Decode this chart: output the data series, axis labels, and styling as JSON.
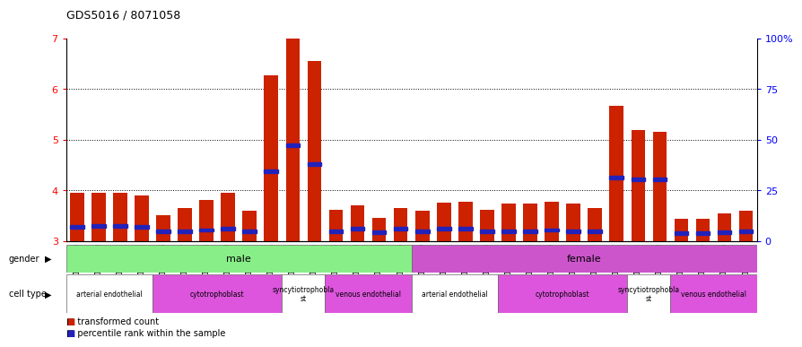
{
  "title": "GDS5016 / 8071058",
  "samples": [
    "GSM1083999",
    "GSM1084000",
    "GSM1084001",
    "GSM1084002",
    "GSM1083976",
    "GSM1083977",
    "GSM1083978",
    "GSM1083979",
    "GSM1083981",
    "GSM1083984",
    "GSM1083985",
    "GSM1083986",
    "GSM1083998",
    "GSM1084003",
    "GSM1084004",
    "GSM1084005",
    "GSM1083990",
    "GSM1083991",
    "GSM1083992",
    "GSM1083993",
    "GSM1083974",
    "GSM1083975",
    "GSM1083980",
    "GSM1083982",
    "GSM1083983",
    "GSM1083987",
    "GSM1083988",
    "GSM1083989",
    "GSM1083994",
    "GSM1083995",
    "GSM1083996",
    "GSM1083997"
  ],
  "bar_heights": [
    3.95,
    3.95,
    3.95,
    3.9,
    3.52,
    3.65,
    3.82,
    3.95,
    3.6,
    6.28,
    7.0,
    6.55,
    3.62,
    3.7,
    3.46,
    3.65,
    3.6,
    3.76,
    3.78,
    3.62,
    3.75,
    3.75,
    3.78,
    3.74,
    3.65,
    5.68,
    5.2,
    5.15,
    3.45,
    3.45,
    3.55,
    3.6
  ],
  "blue_heights": [
    3.28,
    3.3,
    3.3,
    3.28,
    3.2,
    3.2,
    3.22,
    3.25,
    3.2,
    4.38,
    4.9,
    4.52,
    3.2,
    3.25,
    3.18,
    3.25,
    3.2,
    3.25,
    3.25,
    3.2,
    3.2,
    3.2,
    3.22,
    3.2,
    3.2,
    4.25,
    4.22,
    4.22,
    3.15,
    3.15,
    3.18,
    3.2
  ],
  "baseline": 3.0,
  "ylim_left": [
    3.0,
    7.0
  ],
  "ylim_right": [
    0,
    100
  ],
  "yticks_left": [
    3,
    4,
    5,
    6,
    7
  ],
  "yticks_right": [
    0,
    25,
    50,
    75,
    100
  ],
  "ytick_right_labels": [
    "0",
    "25",
    "50",
    "75",
    "100%"
  ],
  "grid_lines": [
    4,
    5,
    6
  ],
  "bar_color": "#cc2200",
  "blue_color": "#2222bb",
  "gender_labels": [
    {
      "label": "male",
      "start": 0,
      "end": 16,
      "color": "#88ee88"
    },
    {
      "label": "female",
      "start": 16,
      "end": 32,
      "color": "#cc55cc"
    }
  ],
  "cell_type_groups": [
    {
      "label": "arterial endothelial",
      "start": 0,
      "end": 4,
      "color": "#ffffff"
    },
    {
      "label": "cytotrophoblast",
      "start": 4,
      "end": 10,
      "color": "#dd55dd"
    },
    {
      "label": "syncytiotrophobla\nst",
      "start": 10,
      "end": 12,
      "color": "#ffffff"
    },
    {
      "label": "venous endothelial",
      "start": 12,
      "end": 16,
      "color": "#dd55dd"
    },
    {
      "label": "arterial endothelial",
      "start": 16,
      "end": 20,
      "color": "#ffffff"
    },
    {
      "label": "cytotrophoblast",
      "start": 20,
      "end": 26,
      "color": "#dd55dd"
    },
    {
      "label": "syncytiotrophobla\nst",
      "start": 26,
      "end": 28,
      "color": "#ffffff"
    },
    {
      "label": "venous endothelial",
      "start": 28,
      "end": 32,
      "color": "#dd55dd"
    }
  ],
  "legend_items": [
    {
      "label": "transformed count",
      "color": "#cc2200"
    },
    {
      "label": "percentile rank within the sample",
      "color": "#2222bb"
    }
  ],
  "fig_width": 8.85,
  "fig_height": 3.93,
  "dpi": 100
}
